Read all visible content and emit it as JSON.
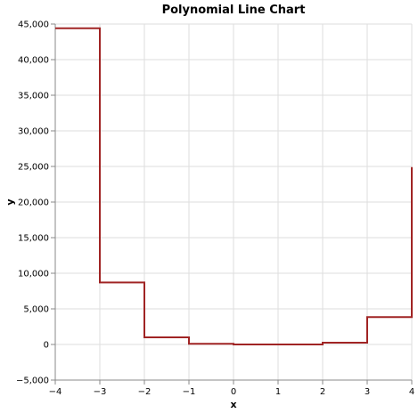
{
  "chart_data": {
    "type": "line",
    "interpolation": "step",
    "title": "Polynomial Line Chart",
    "xlabel": "x",
    "ylabel": "y",
    "xlim": [
      -4,
      4
    ],
    "ylim": [
      -5000,
      45000
    ],
    "grid": true,
    "x_ticks": [
      -4,
      -3,
      -2,
      -1,
      0,
      1,
      2,
      3,
      4
    ],
    "x_tick_labels": [
      "−4",
      "−3",
      "−2",
      "−1",
      "0",
      "1",
      "2",
      "3",
      "4"
    ],
    "y_ticks": [
      -5000,
      0,
      5000,
      10000,
      15000,
      20000,
      25000,
      30000,
      35000,
      40000,
      45000
    ],
    "y_tick_labels": [
      "−5,000",
      "0",
      "5,000",
      "10,000",
      "15,000",
      "20,000",
      "25,000",
      "30,000",
      "35,000",
      "40,000",
      "45,000"
    ],
    "series": [
      {
        "color": "#a02424",
        "x": [
          -4,
          -3,
          -2,
          -1,
          0,
          1,
          2,
          3,
          4
        ],
        "y": [
          44400,
          8700,
          1000,
          100,
          0,
          0,
          250,
          3850,
          24900
        ]
      }
    ]
  }
}
